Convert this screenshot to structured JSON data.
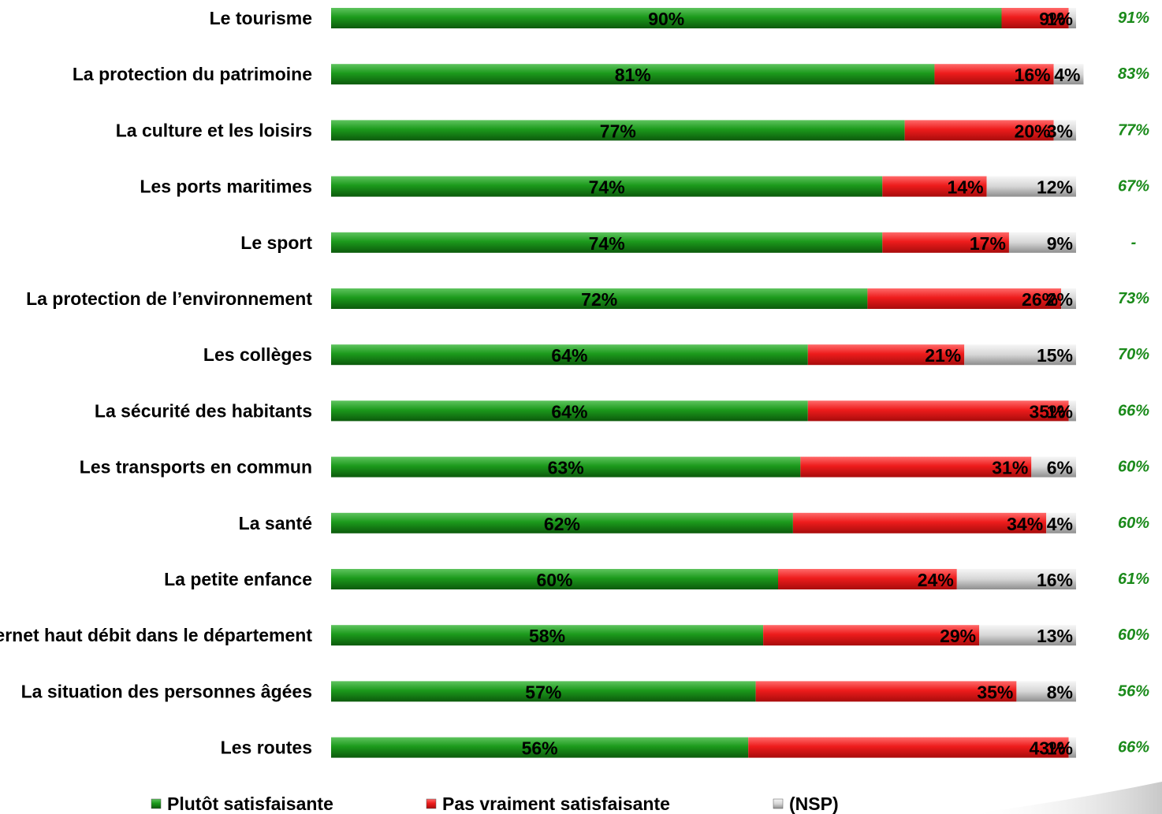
{
  "chart_data": {
    "type": "bar",
    "orientation": "horizontal",
    "stacked": true,
    "title": "",
    "xlabel": "",
    "ylabel": "",
    "xlim": [
      0,
      100
    ],
    "grid": false,
    "legend_position": "bottom",
    "categories": [
      "Le tourisme",
      "La protection du patrimoine",
      "La culture et les loisirs",
      "Les ports maritimes",
      "Le sport",
      "La protection de l’environnement",
      "Les collèges",
      "La sécurité des habitants",
      "Les transports en commun",
      "La santé",
      "La petite enfance",
      "Internet haut débit dans le département",
      "La situation des personnes âgées",
      "Les routes"
    ],
    "series": [
      {
        "name": "Plutôt satisfaisante",
        "color": "#1a8a1a",
        "values": [
          90,
          81,
          77,
          74,
          74,
          72,
          64,
          64,
          63,
          62,
          60,
          58,
          57,
          56
        ],
        "labels": [
          "90%",
          "81%",
          "77%",
          "74%",
          "74%",
          "72%",
          "64%",
          "64%",
          "63%",
          "62%",
          "60%",
          "58%",
          "57%",
          "56%"
        ]
      },
      {
        "name": "Pas vraiment satisfaisante",
        "color": "#ee1c1c",
        "values": [
          9,
          16,
          20,
          14,
          17,
          26,
          21,
          35,
          31,
          34,
          24,
          29,
          35,
          43
        ],
        "labels": [
          "9%",
          "16%",
          "20%",
          "14%",
          "17%",
          "26%",
          "21%",
          "35%",
          "31%",
          "34%",
          "24%",
          "29%",
          "35%",
          "43%"
        ]
      },
      {
        "name": "(NSP)",
        "color": "#d4d4d4",
        "values": [
          1,
          4,
          3,
          12,
          9,
          2,
          15,
          1,
          6,
          4,
          16,
          13,
          8,
          1
        ],
        "labels": [
          "1%",
          "4%",
          "3%",
          "12%",
          "9%",
          "2%",
          "15%",
          "1%",
          "6%",
          "4%",
          "16%",
          "13%",
          "8%",
          "1%"
        ]
      }
    ],
    "previous_values": [
      "91%",
      "83%",
      "77%",
      "67%",
      "-",
      "73%",
      "70%",
      "66%",
      "60%",
      "60%",
      "61%",
      "60%",
      "56%",
      "66%"
    ],
    "previous_color": "#1a8a1a"
  }
}
